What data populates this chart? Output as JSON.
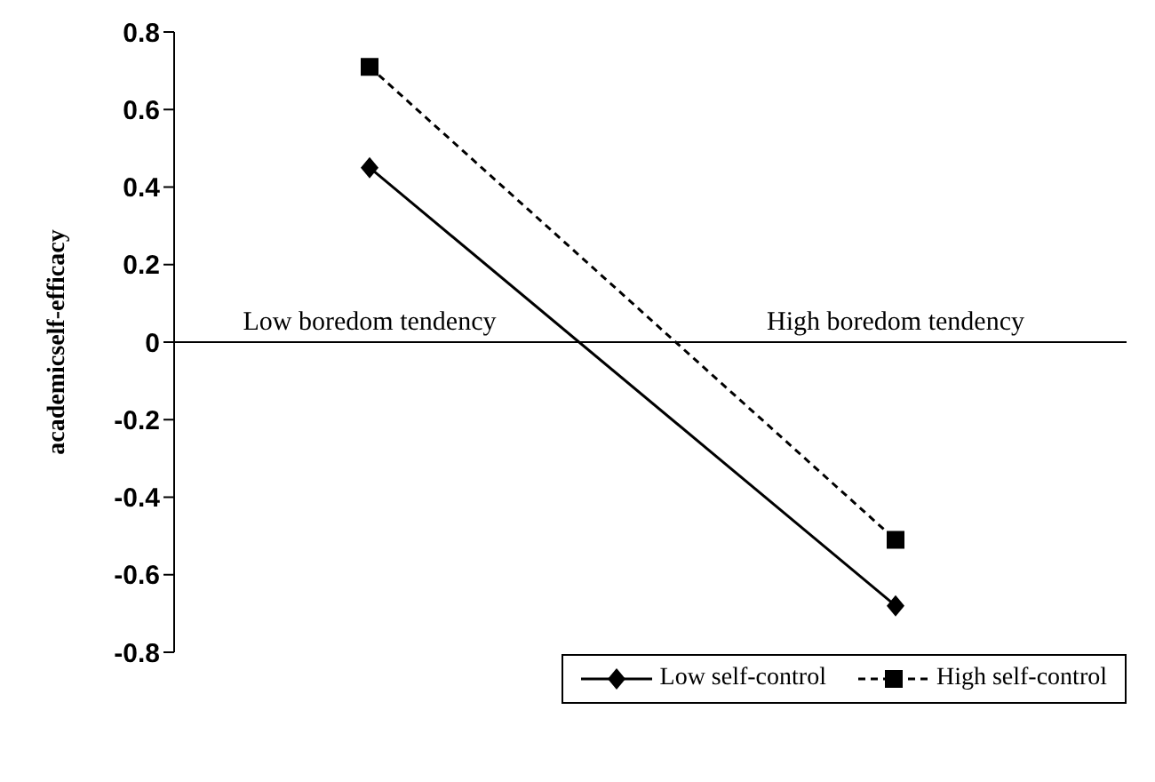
{
  "chart_data": {
    "type": "line",
    "ylabel": "academicself-efficacy",
    "categories": [
      "Low boredom tendency",
      "High boredom tendency"
    ],
    "series": [
      {
        "name": "Low self-control",
        "color": "#000000",
        "values": [
          0.45,
          -0.68
        ],
        "marker": "diamond",
        "line_style": "solid"
      },
      {
        "name": "High self-control",
        "color": "#000000",
        "values": [
          0.71,
          -0.51
        ],
        "marker": "square",
        "line_style": "dashed"
      }
    ],
    "ylim": [
      -0.8,
      0.8
    ],
    "yticks": [
      -0.8,
      -0.6,
      -0.4,
      -0.2,
      0,
      0.2,
      0.4,
      0.6,
      0.8
    ],
    "legend": "bottom right"
  }
}
